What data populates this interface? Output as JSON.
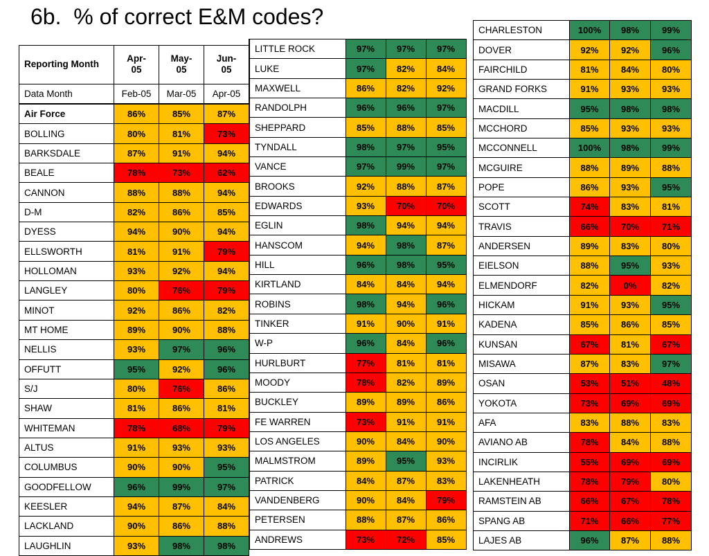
{
  "title": "6b.  % of correct E&M codes?",
  "colors": {
    "green": "#2e8b57",
    "yellow": "#ffc000",
    "red": "#ff0000"
  },
  "table1": {
    "header": {
      "label": "Reporting Month",
      "cols": [
        "Apr-\n05",
        "May-\n05",
        "Jun-\n05"
      ]
    },
    "data_month": {
      "label": "Data Month",
      "cols": [
        "Feb-05",
        "Mar-05",
        "Apr-05"
      ]
    },
    "rows": [
      {
        "name": "Air Force",
        "v": [
          "86%",
          "85%",
          "87%"
        ],
        "c": [
          "y",
          "y",
          "y"
        ]
      },
      {
        "name": "BOLLING",
        "v": [
          "80%",
          "81%",
          "73%"
        ],
        "c": [
          "y",
          "y",
          "r"
        ]
      },
      {
        "name": "BARKSDALE",
        "v": [
          "87%",
          "91%",
          "94%"
        ],
        "c": [
          "y",
          "y",
          "y"
        ]
      },
      {
        "name": "BEALE",
        "v": [
          "78%",
          "73%",
          "62%"
        ],
        "c": [
          "r",
          "r",
          "r"
        ]
      },
      {
        "name": "CANNON",
        "v": [
          "88%",
          "88%",
          "94%"
        ],
        "c": [
          "y",
          "y",
          "y"
        ]
      },
      {
        "name": "D-M",
        "v": [
          "82%",
          "86%",
          "85%"
        ],
        "c": [
          "y",
          "y",
          "y"
        ]
      },
      {
        "name": "DYESS",
        "v": [
          "94%",
          "90%",
          "94%"
        ],
        "c": [
          "y",
          "y",
          "y"
        ]
      },
      {
        "name": "ELLSWORTH",
        "v": [
          "81%",
          "91%",
          "79%"
        ],
        "c": [
          "y",
          "y",
          "r"
        ]
      },
      {
        "name": "HOLLOMAN",
        "v": [
          "93%",
          "92%",
          "94%"
        ],
        "c": [
          "y",
          "y",
          "y"
        ]
      },
      {
        "name": "LANGLEY",
        "v": [
          "80%",
          "76%",
          "79%"
        ],
        "c": [
          "y",
          "r",
          "r"
        ]
      },
      {
        "name": "MINOT",
        "v": [
          "92%",
          "86%",
          "82%"
        ],
        "c": [
          "y",
          "y",
          "y"
        ]
      },
      {
        "name": "MT HOME",
        "v": [
          "89%",
          "90%",
          "88%"
        ],
        "c": [
          "y",
          "y",
          "y"
        ]
      },
      {
        "name": "NELLIS",
        "v": [
          "93%",
          "97%",
          "96%"
        ],
        "c": [
          "y",
          "g",
          "g"
        ]
      },
      {
        "name": "OFFUTT",
        "v": [
          "95%",
          "92%",
          "96%"
        ],
        "c": [
          "g",
          "y",
          "g"
        ]
      },
      {
        "name": "S/J",
        "v": [
          "80%",
          "76%",
          "86%"
        ],
        "c": [
          "y",
          "r",
          "y"
        ]
      },
      {
        "name": "SHAW",
        "v": [
          "81%",
          "86%",
          "81%"
        ],
        "c": [
          "y",
          "y",
          "y"
        ]
      },
      {
        "name": "WHITEMAN",
        "v": [
          "78%",
          "68%",
          "79%"
        ],
        "c": [
          "r",
          "r",
          "r"
        ]
      },
      {
        "name": "ALTUS",
        "v": [
          "91%",
          "93%",
          "93%"
        ],
        "c": [
          "y",
          "y",
          "y"
        ]
      },
      {
        "name": "COLUMBUS",
        "v": [
          "90%",
          "90%",
          "95%"
        ],
        "c": [
          "y",
          "y",
          "g"
        ]
      },
      {
        "name": "GOODFELLOW",
        "v": [
          "96%",
          "99%",
          "97%"
        ],
        "c": [
          "g",
          "g",
          "g"
        ]
      },
      {
        "name": "KEESLER",
        "v": [
          "94%",
          "87%",
          "84%"
        ],
        "c": [
          "y",
          "y",
          "y"
        ]
      },
      {
        "name": "LACKLAND",
        "v": [
          "90%",
          "86%",
          "88%"
        ],
        "c": [
          "y",
          "y",
          "y"
        ]
      },
      {
        "name": "LAUGHLIN",
        "v": [
          "93%",
          "98%",
          "98%"
        ],
        "c": [
          "y",
          "g",
          "g"
        ]
      }
    ]
  },
  "table2": {
    "rows": [
      {
        "name": "LITTLE ROCK",
        "v": [
          "97%",
          "97%",
          "97%"
        ],
        "c": [
          "g",
          "g",
          "g"
        ]
      },
      {
        "name": "LUKE",
        "v": [
          "97%",
          "82%",
          "84%"
        ],
        "c": [
          "g",
          "y",
          "y"
        ]
      },
      {
        "name": "MAXWELL",
        "v": [
          "86%",
          "82%",
          "92%"
        ],
        "c": [
          "y",
          "y",
          "y"
        ]
      },
      {
        "name": "RANDOLPH",
        "v": [
          "96%",
          "96%",
          "97%"
        ],
        "c": [
          "g",
          "g",
          "g"
        ]
      },
      {
        "name": "SHEPPARD",
        "v": [
          "85%",
          "88%",
          "85%"
        ],
        "c": [
          "y",
          "y",
          "y"
        ]
      },
      {
        "name": "TYNDALL",
        "v": [
          "98%",
          "97%",
          "95%"
        ],
        "c": [
          "g",
          "g",
          "g"
        ]
      },
      {
        "name": "VANCE",
        "v": [
          "97%",
          "99%",
          "97%"
        ],
        "c": [
          "g",
          "g",
          "g"
        ]
      },
      {
        "name": "BROOKS",
        "v": [
          "92%",
          "88%",
          "87%"
        ],
        "c": [
          "y",
          "y",
          "y"
        ]
      },
      {
        "name": "EDWARDS",
        "v": [
          "93%",
          "70%",
          "70%"
        ],
        "c": [
          "y",
          "r",
          "r"
        ]
      },
      {
        "name": "EGLIN",
        "v": [
          "98%",
          "94%",
          "94%"
        ],
        "c": [
          "g",
          "y",
          "y"
        ]
      },
      {
        "name": "HANSCOM",
        "v": [
          "94%",
          "98%",
          "87%"
        ],
        "c": [
          "y",
          "g",
          "y"
        ]
      },
      {
        "name": "HILL",
        "v": [
          "96%",
          "98%",
          "95%"
        ],
        "c": [
          "g",
          "g",
          "g"
        ]
      },
      {
        "name": "KIRTLAND",
        "v": [
          "84%",
          "84%",
          "94%"
        ],
        "c": [
          "y",
          "y",
          "y"
        ]
      },
      {
        "name": "ROBINS",
        "v": [
          "98%",
          "94%",
          "96%"
        ],
        "c": [
          "g",
          "y",
          "g"
        ]
      },
      {
        "name": "TINKER",
        "v": [
          "91%",
          "90%",
          "91%"
        ],
        "c": [
          "y",
          "y",
          "y"
        ]
      },
      {
        "name": "W-P",
        "v": [
          "96%",
          "84%",
          "96%"
        ],
        "c": [
          "g",
          "y",
          "g"
        ]
      },
      {
        "name": "HURLBURT",
        "v": [
          "77%",
          "81%",
          "81%"
        ],
        "c": [
          "r",
          "y",
          "y"
        ]
      },
      {
        "name": "MOODY",
        "v": [
          "78%",
          "82%",
          "89%"
        ],
        "c": [
          "r",
          "y",
          "y"
        ]
      },
      {
        "name": "BUCKLEY",
        "v": [
          "89%",
          "89%",
          "86%"
        ],
        "c": [
          "y",
          "y",
          "y"
        ]
      },
      {
        "name": "FE WARREN",
        "v": [
          "73%",
          "91%",
          "91%"
        ],
        "c": [
          "r",
          "y",
          "y"
        ]
      },
      {
        "name": "LOS ANGELES",
        "v": [
          "90%",
          "84%",
          "90%"
        ],
        "c": [
          "y",
          "y",
          "y"
        ]
      },
      {
        "name": "MALMSTROM",
        "v": [
          "89%",
          "95%",
          "93%"
        ],
        "c": [
          "y",
          "g",
          "y"
        ]
      },
      {
        "name": "PATRICK",
        "v": [
          "84%",
          "87%",
          "83%"
        ],
        "c": [
          "y",
          "y",
          "y"
        ]
      },
      {
        "name": "VANDENBERG",
        "v": [
          "90%",
          "84%",
          "79%"
        ],
        "c": [
          "y",
          "y",
          "r"
        ]
      },
      {
        "name": "PETERSEN",
        "v": [
          "88%",
          "87%",
          "86%"
        ],
        "c": [
          "y",
          "y",
          "y"
        ]
      },
      {
        "name": "ANDREWS",
        "v": [
          "73%",
          "72%",
          "85%"
        ],
        "c": [
          "r",
          "r",
          "y"
        ]
      }
    ]
  },
  "table3": {
    "rows": [
      {
        "name": "CHARLESTON",
        "v": [
          "100%",
          "98%",
          "99%"
        ],
        "c": [
          "g",
          "g",
          "g"
        ]
      },
      {
        "name": "DOVER",
        "v": [
          "92%",
          "92%",
          "96%"
        ],
        "c": [
          "y",
          "y",
          "g"
        ]
      },
      {
        "name": "FAIRCHILD",
        "v": [
          "81%",
          "84%",
          "80%"
        ],
        "c": [
          "y",
          "y",
          "y"
        ]
      },
      {
        "name": "GRAND FORKS",
        "v": [
          "91%",
          "93%",
          "93%"
        ],
        "c": [
          "y",
          "y",
          "y"
        ]
      },
      {
        "name": "MACDILL",
        "v": [
          "95%",
          "98%",
          "98%"
        ],
        "c": [
          "g",
          "g",
          "g"
        ]
      },
      {
        "name": "MCCHORD",
        "v": [
          "85%",
          "93%",
          "93%"
        ],
        "c": [
          "y",
          "y",
          "y"
        ]
      },
      {
        "name": "MCCONNELL",
        "v": [
          "100%",
          "98%",
          "99%"
        ],
        "c": [
          "g",
          "g",
          "g"
        ]
      },
      {
        "name": "MCGUIRE",
        "v": [
          "88%",
          "89%",
          "88%"
        ],
        "c": [
          "y",
          "y",
          "y"
        ]
      },
      {
        "name": "POPE",
        "v": [
          "86%",
          "93%",
          "95%"
        ],
        "c": [
          "y",
          "y",
          "g"
        ]
      },
      {
        "name": "SCOTT",
        "v": [
          "74%",
          "83%",
          "81%"
        ],
        "c": [
          "r",
          "y",
          "y"
        ]
      },
      {
        "name": "TRAVIS",
        "v": [
          "66%",
          "70%",
          "71%"
        ],
        "c": [
          "r",
          "r",
          "r"
        ]
      },
      {
        "name": "ANDERSEN",
        "v": [
          "89%",
          "83%",
          "80%"
        ],
        "c": [
          "y",
          "y",
          "y"
        ]
      },
      {
        "name": "EIELSON",
        "v": [
          "88%",
          "95%",
          "93%"
        ],
        "c": [
          "y",
          "g",
          "y"
        ]
      },
      {
        "name": "ELMENDORF",
        "v": [
          "82%",
          "0%",
          "82%"
        ],
        "c": [
          "y",
          "r",
          "y"
        ]
      },
      {
        "name": "HICKAM",
        "v": [
          "91%",
          "93%",
          "95%"
        ],
        "c": [
          "y",
          "y",
          "g"
        ]
      },
      {
        "name": "KADENA",
        "v": [
          "85%",
          "86%",
          "85%"
        ],
        "c": [
          "y",
          "y",
          "y"
        ]
      },
      {
        "name": "KUNSAN",
        "v": [
          "67%",
          "81%",
          "67%"
        ],
        "c": [
          "r",
          "y",
          "r"
        ]
      },
      {
        "name": "MISAWA",
        "v": [
          "87%",
          "83%",
          "97%"
        ],
        "c": [
          "y",
          "y",
          "g"
        ]
      },
      {
        "name": "OSAN",
        "v": [
          "53%",
          "51%",
          "48%"
        ],
        "c": [
          "r",
          "r",
          "r"
        ]
      },
      {
        "name": "YOKOTA",
        "v": [
          "73%",
          "69%",
          "69%"
        ],
        "c": [
          "r",
          "r",
          "r"
        ]
      },
      {
        "name": "AFA",
        "v": [
          "83%",
          "88%",
          "83%"
        ],
        "c": [
          "y",
          "y",
          "y"
        ]
      },
      {
        "name": "AVIANO AB",
        "v": [
          "78%",
          "84%",
          "88%"
        ],
        "c": [
          "r",
          "y",
          "y"
        ]
      },
      {
        "name": "INCIRLIK",
        "v": [
          "55%",
          "69%",
          "69%"
        ],
        "c": [
          "r",
          "r",
          "r"
        ]
      },
      {
        "name": "LAKENHEATH",
        "v": [
          "78%",
          "79%",
          "80%"
        ],
        "c": [
          "r",
          "r",
          "y"
        ]
      },
      {
        "name": "RAMSTEIN AB",
        "v": [
          "66%",
          "67%",
          "78%"
        ],
        "c": [
          "r",
          "r",
          "r"
        ]
      },
      {
        "name": "SPANG AB",
        "v": [
          "71%",
          "66%",
          "77%"
        ],
        "c": [
          "r",
          "r",
          "r"
        ]
      },
      {
        "name": "LAJES AB",
        "v": [
          "96%",
          "87%",
          "88%"
        ],
        "c": [
          "g",
          "y",
          "y"
        ]
      }
    ]
  }
}
